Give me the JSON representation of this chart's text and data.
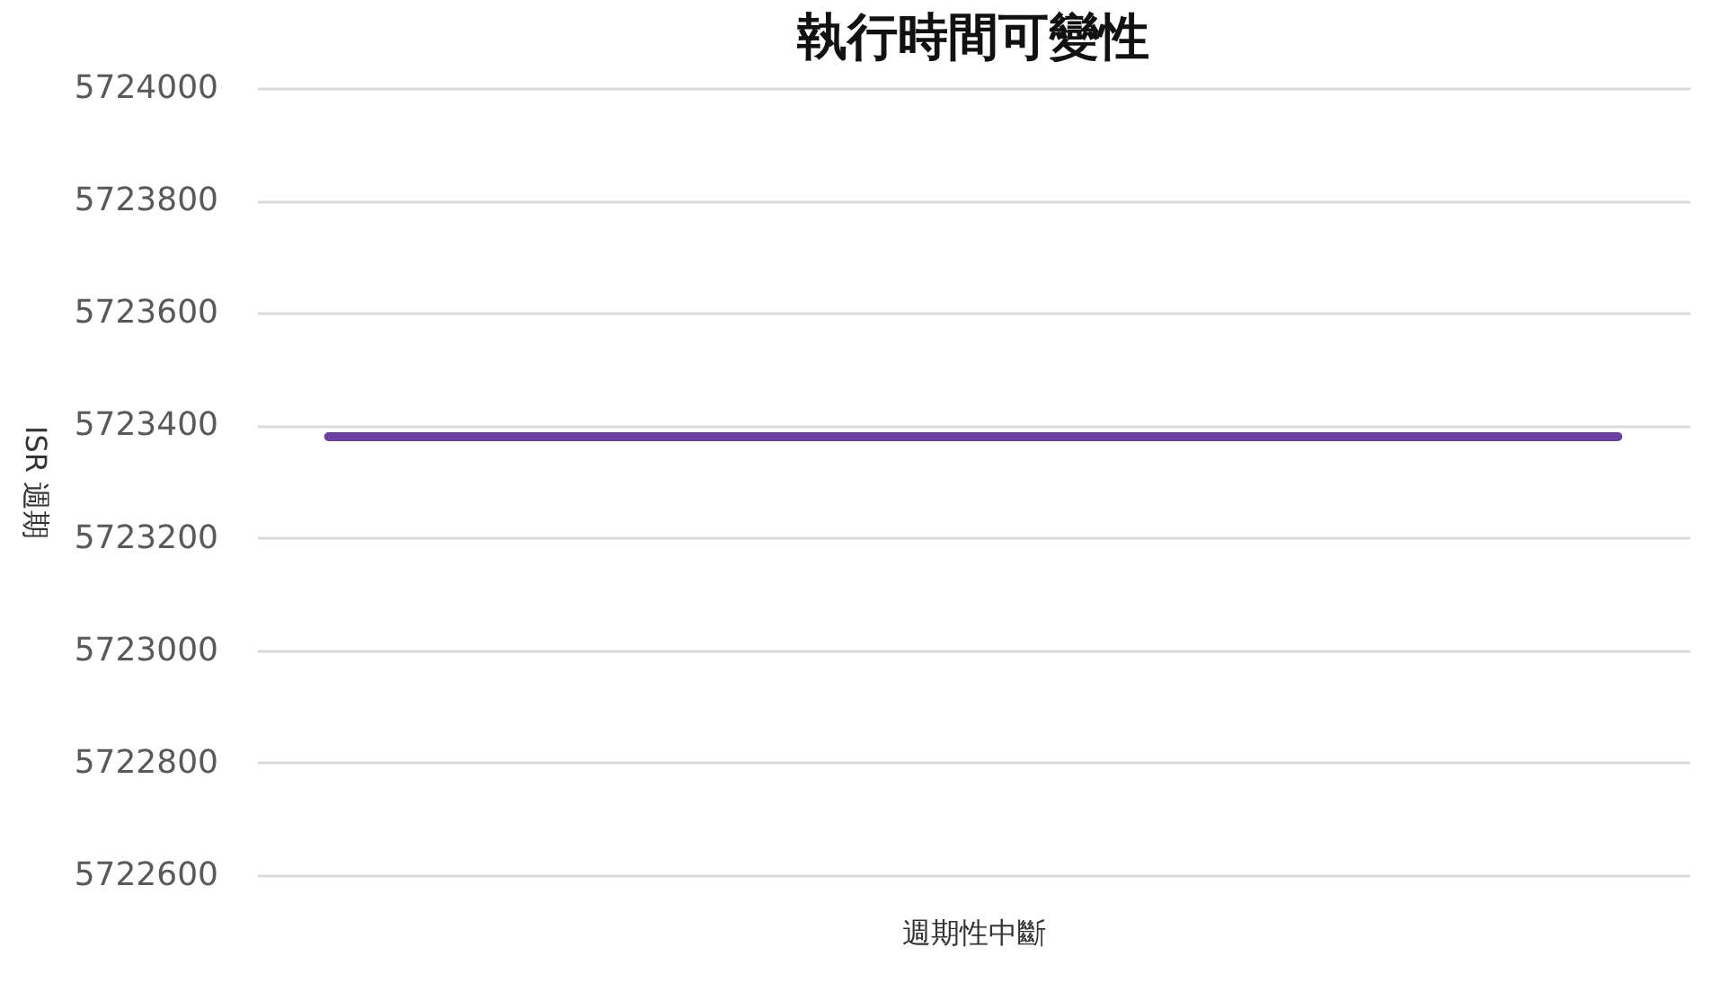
{
  "chart_data": {
    "type": "line",
    "title": "執行時間可變性",
    "xlabel": "週期性中斷",
    "ylabel": "ISR 週期",
    "categories": [
      null,
      null,
      null,
      null,
      null,
      null,
      null,
      null,
      null,
      null
    ],
    "series": [
      {
        "color": "#6b3fa0",
        "values": [
          5723380,
          5723380,
          5723380,
          5723380,
          5723380,
          5723380,
          5723380,
          5723380,
          5723380,
          5723380
        ]
      }
    ],
    "ylim": [
      5722600,
      5724000
    ],
    "yticks": [
      5722600,
      5722800,
      5723000,
      5723200,
      5723400,
      5723600,
      5723800,
      5724000
    ],
    "grid": "y",
    "tick_labels": "y",
    "marker": "none",
    "line_style": "solid"
  }
}
